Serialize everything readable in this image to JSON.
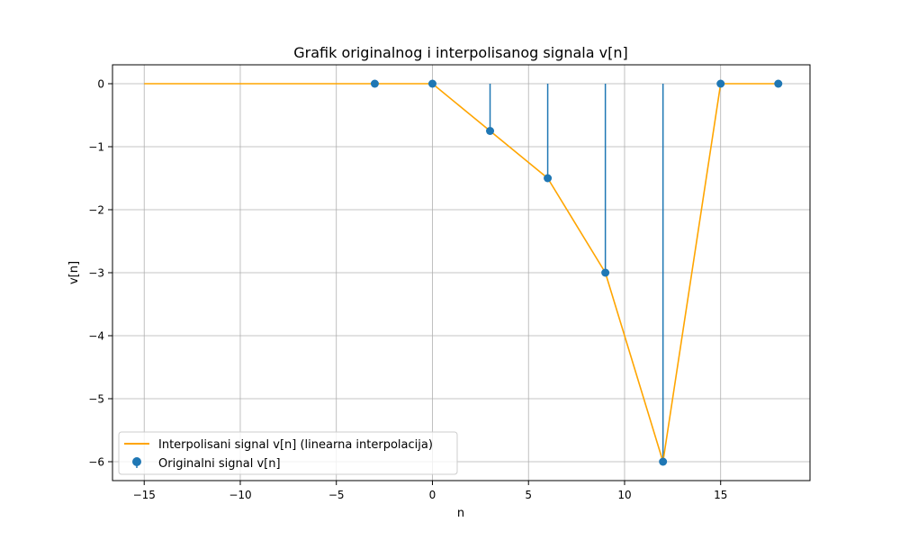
{
  "chart_data": {
    "type": "line",
    "title": "Grafik originalnog i interpolisanog signala v[n]",
    "xlabel": "n",
    "ylabel": "v[n]",
    "xlim": [
      -16.65,
      19.65
    ],
    "ylim": [
      -6.3,
      0.3
    ],
    "xticks": [
      -15,
      -10,
      -5,
      0,
      5,
      10,
      15
    ],
    "xtick_labels": [
      "−15",
      "−10",
      "−5",
      "0",
      "5",
      "10",
      "15"
    ],
    "yticks": [
      0,
      -1,
      -2,
      -3,
      -4,
      -5,
      -6
    ],
    "ytick_labels": [
      "0",
      "−1",
      "−2",
      "−3",
      "−4",
      "−5",
      "−6"
    ],
    "grid": true,
    "legend_position": "lower-left",
    "series": [
      {
        "name": "Interpolisani signal v[n] (linearna interpolacija)",
        "kind": "line",
        "color": "#ffa500",
        "x": [
          -15,
          0,
          3,
          6,
          9,
          12,
          15,
          18
        ],
        "y": [
          0,
          0,
          -0.75,
          -1.5,
          -3,
          -6,
          0,
          0
        ]
      },
      {
        "name": "Originalni signal v[n]",
        "kind": "stem",
        "color": "#1f77b4",
        "x": [
          -3,
          0,
          3,
          6,
          9,
          12,
          15,
          18
        ],
        "y": [
          0,
          0,
          -0.75,
          -1.5,
          -3,
          -6,
          0,
          0
        ]
      }
    ]
  }
}
